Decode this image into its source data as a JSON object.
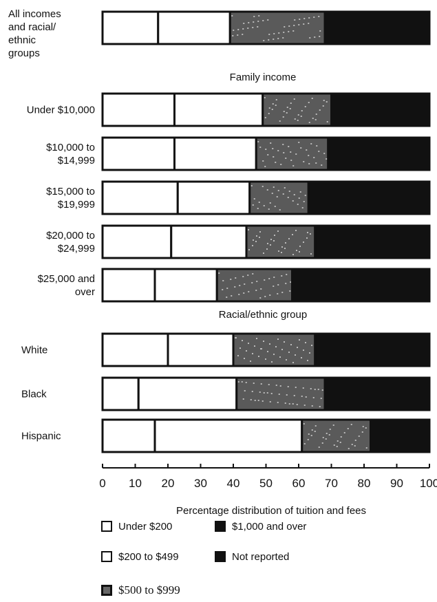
{
  "chart_data": {
    "type": "bar",
    "orientation": "horizontal",
    "stacked": true,
    "xlabel": "Percentage distribution of tuition and fees",
    "xlim": [
      0,
      100
    ],
    "xticks": [
      0,
      10,
      20,
      30,
      40,
      50,
      60,
      70,
      80,
      90,
      100
    ],
    "grid": false,
    "legend_position": "bottom",
    "groups": [
      {
        "heading": "",
        "categories": [
          "All incomes and racial/ ethnic groups"
        ]
      },
      {
        "heading": "Family income",
        "categories": [
          "Under $10,000",
          "$10,000 to $14,999",
          "$15,000 to $19,999",
          "$20,000 to $24,999",
          "$25,000 and over"
        ]
      },
      {
        "heading": "Racial/ethnic group",
        "categories": [
          "White",
          "Black",
          "Hispanic"
        ]
      }
    ],
    "categories": [
      "All incomes and racial/ ethnic groups",
      "Under $10,000",
      "$10,000 to $14,999",
      "$15,000 to $19,999",
      "$20,000 to $24,999",
      "$25,000 and over",
      "White",
      "Black",
      "Hispanic"
    ],
    "category_lines": [
      [
        "All incomes",
        "and racial/",
        "ethnic",
        "groups"
      ],
      [
        "Under $10,000"
      ],
      [
        "$10,000 to",
        "$14,999"
      ],
      [
        "$15,000 to",
        "$19,999"
      ],
      [
        "$20,000 to",
        "$24,999"
      ],
      [
        "$25,000 and",
        "over"
      ],
      [
        "White"
      ],
      [
        "Black"
      ],
      [
        "Hispanic"
      ]
    ],
    "series": [
      {
        "name": "Under $200",
        "values": [
          17,
          22,
          22,
          23,
          21,
          16,
          20,
          11,
          16
        ],
        "color": "#ffffff"
      },
      {
        "name": "$200 to $499",
        "values": [
          22,
          27,
          25,
          22,
          23,
          19,
          20,
          30,
          45
        ],
        "color": "#ffffff"
      },
      {
        "name": "$500 to $999",
        "values": [
          29,
          21,
          22,
          18,
          21,
          23,
          25,
          27,
          21
        ],
        "color": "#5a5a5a"
      },
      {
        "name": "$1,000 and over",
        "values": [
          32,
          30,
          31,
          37,
          35,
          42,
          35,
          32,
          18
        ],
        "color": "#111111"
      },
      {
        "name": "Not reported",
        "values": [
          0,
          0,
          0,
          0,
          0,
          0,
          0,
          0,
          0
        ],
        "color": "#111111"
      }
    ]
  }
}
